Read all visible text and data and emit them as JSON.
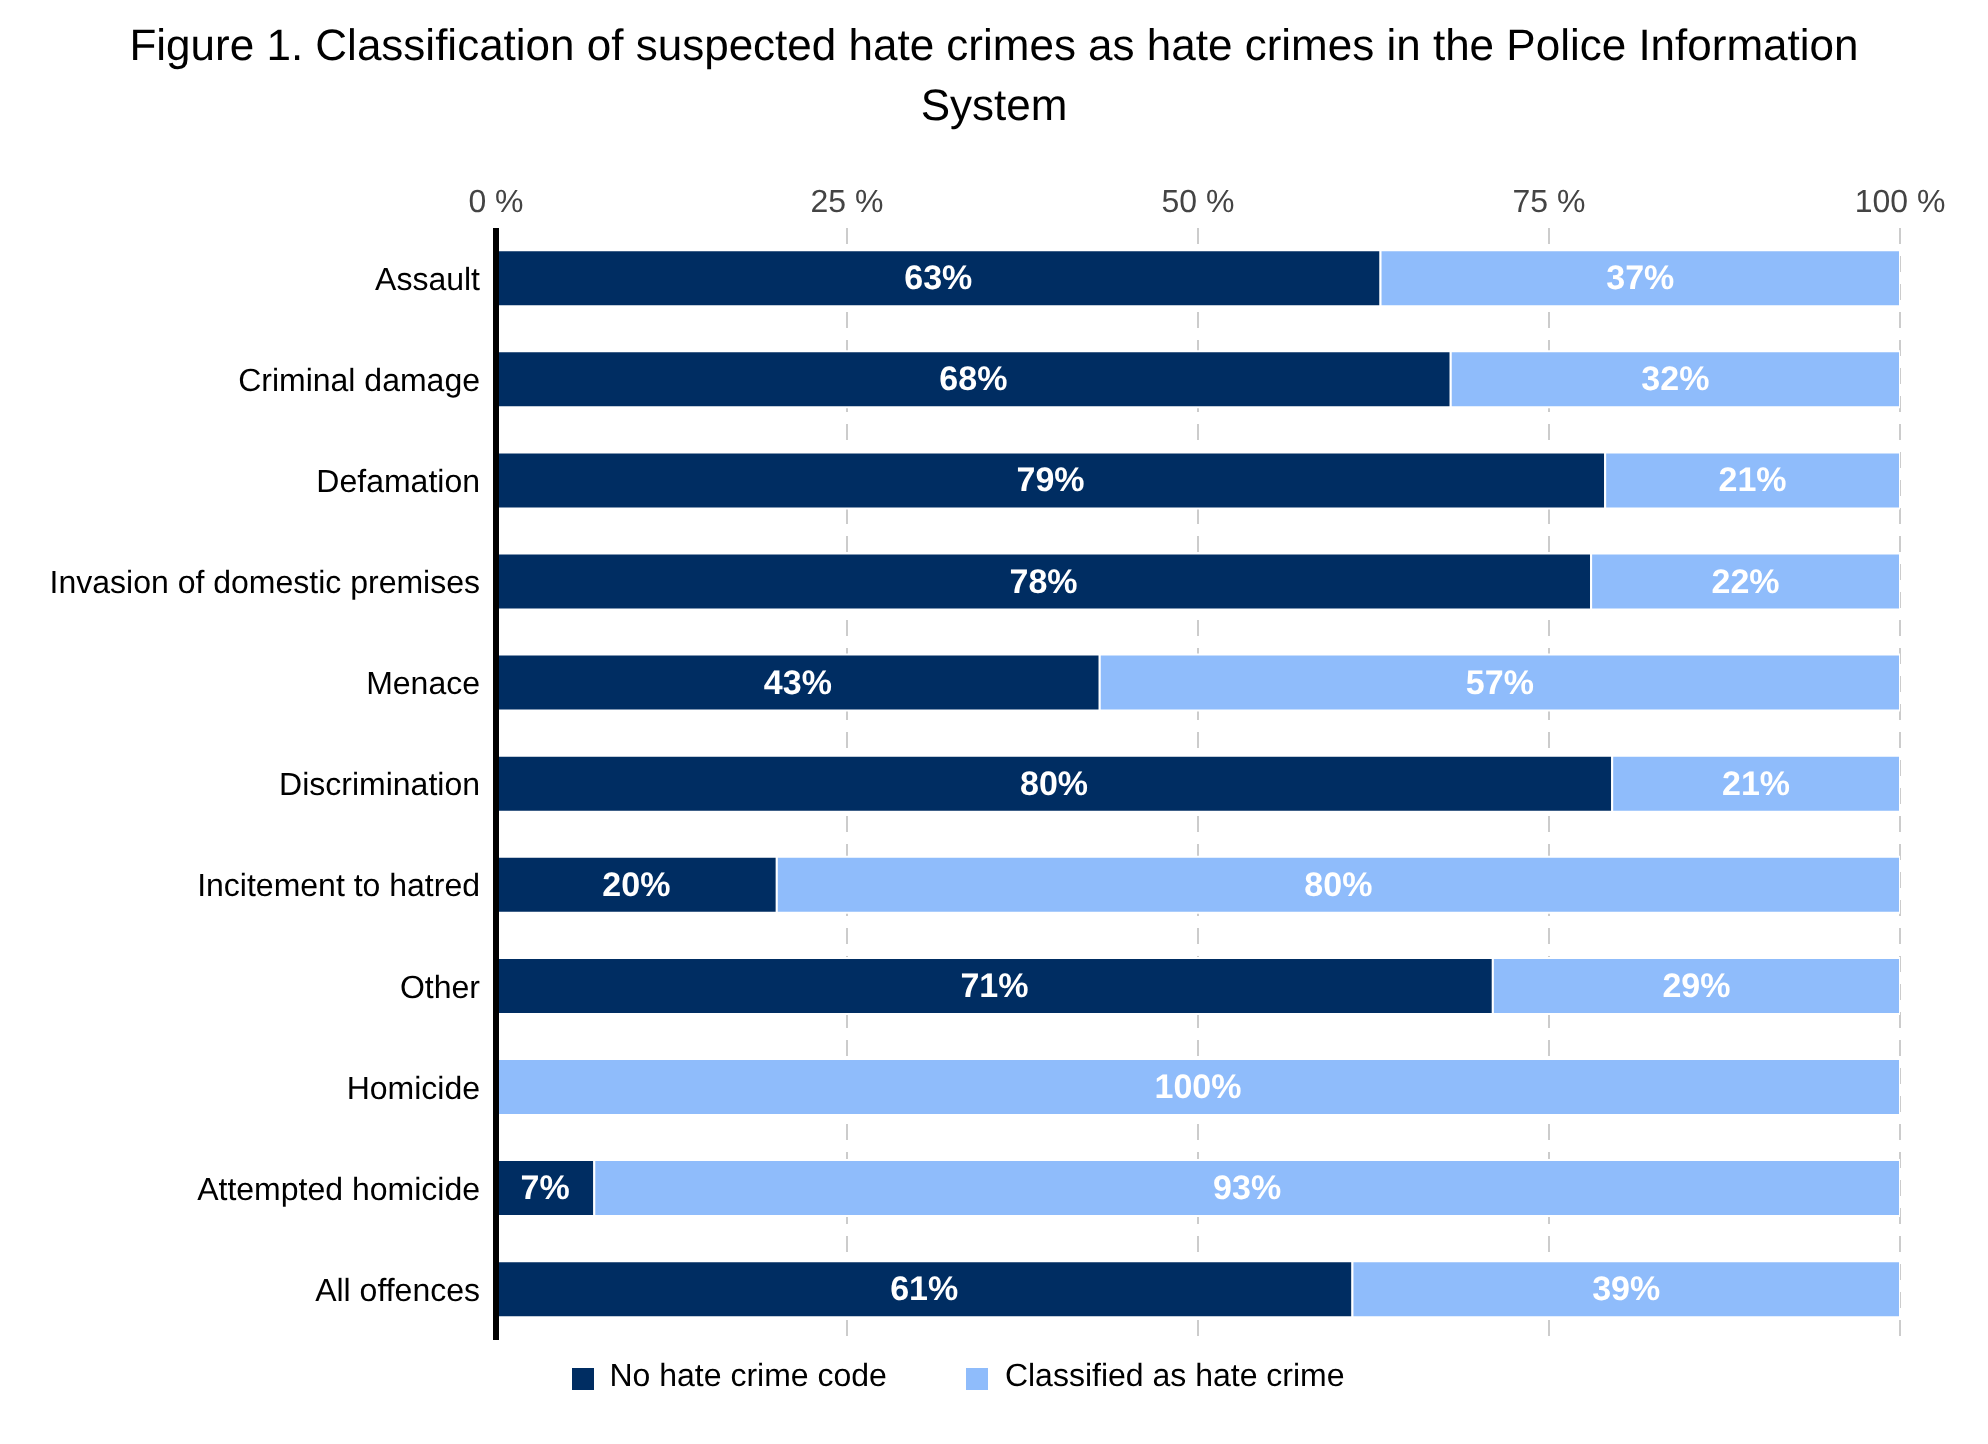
{
  "chart_data": {
    "type": "bar",
    "orientation": "horizontal",
    "stacked": true,
    "title": "Figure 1. Classification of suspected hate crimes as hate crimes in the Police Information System",
    "categories": [
      "Assault",
      "Criminal damage",
      "Defamation",
      "Invasion of domestic premises",
      "Menace",
      "Discrimination",
      "Incitement to hatred",
      "Other",
      "Homicide",
      "Attempted homicide",
      "All offences"
    ],
    "series": [
      {
        "name": "No hate crime code",
        "color": "#002d62",
        "values": [
          63,
          68,
          79,
          78,
          43,
          79.5,
          20,
          71,
          0,
          7,
          61
        ],
        "value_labels": [
          "63%",
          "68%",
          "79%",
          "78%",
          "43%",
          "80%",
          "20%",
          "71%",
          null,
          "7%",
          "61%"
        ]
      },
      {
        "name": "Classified as hate crime",
        "color": "#8fbcfb",
        "values": [
          37,
          32,
          21,
          22,
          57,
          20.5,
          80,
          29,
          100,
          93,
          39
        ],
        "value_labels": [
          "37%",
          "32%",
          "21%",
          "22%",
          "57%",
          "21%",
          "80%",
          "29%",
          "100%",
          "93%",
          "39%"
        ]
      }
    ],
    "xlim": [
      0,
      100
    ],
    "xticks": [
      {
        "value": 0,
        "label": "0 %"
      },
      {
        "value": 25,
        "label": "25 %"
      },
      {
        "value": 50,
        "label": "50 %"
      },
      {
        "value": 75,
        "label": "75 %"
      },
      {
        "value": 100,
        "label": "100 %"
      }
    ],
    "grid": "x",
    "legend": "bottom"
  }
}
